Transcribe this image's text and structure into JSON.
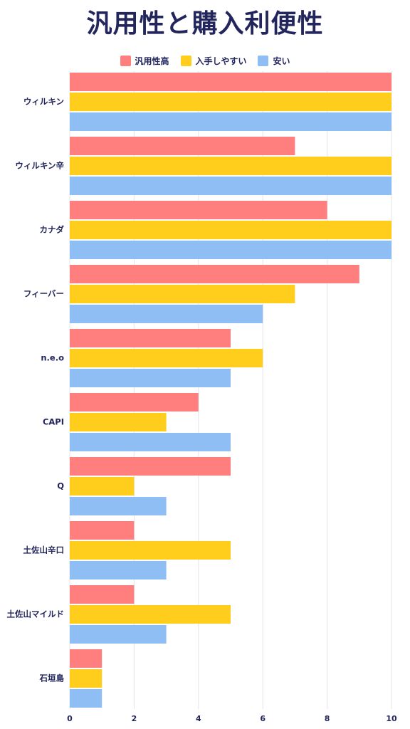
{
  "title": "汎用性と購入利便性",
  "colors": {
    "title": "#23265c",
    "grid": "#e4e4ea",
    "axis_text": "#23265c"
  },
  "chart_data": {
    "type": "bar",
    "orientation": "horizontal",
    "title": "汎用性と購入利便性",
    "xlabel": "",
    "ylabel": "",
    "xlim": [
      0,
      10
    ],
    "x_ticks": [
      0,
      2,
      4,
      6,
      8,
      10
    ],
    "grid": true,
    "legend_position": "top-center",
    "categories": [
      "ウィルキン",
      "ウィルキン辛",
      "カナダ",
      "フィーバー",
      "n.e.o",
      "CAPI",
      "Q",
      "土佐山辛口",
      "土佐山マイルド",
      "石垣島"
    ],
    "series": [
      {
        "name": "汎用性高",
        "color": "#ff7f7f",
        "values": [
          10,
          7,
          8,
          9,
          5,
          4,
          5,
          2,
          2,
          1
        ]
      },
      {
        "name": "入手しやすい",
        "color": "#ffcd1c",
        "values": [
          10,
          10,
          10,
          7,
          6,
          3,
          2,
          5,
          5,
          1
        ]
      },
      {
        "name": "安い",
        "color": "#8fbef5",
        "values": [
          10,
          10,
          10,
          6,
          5,
          5,
          3,
          3,
          3,
          1
        ]
      }
    ]
  }
}
